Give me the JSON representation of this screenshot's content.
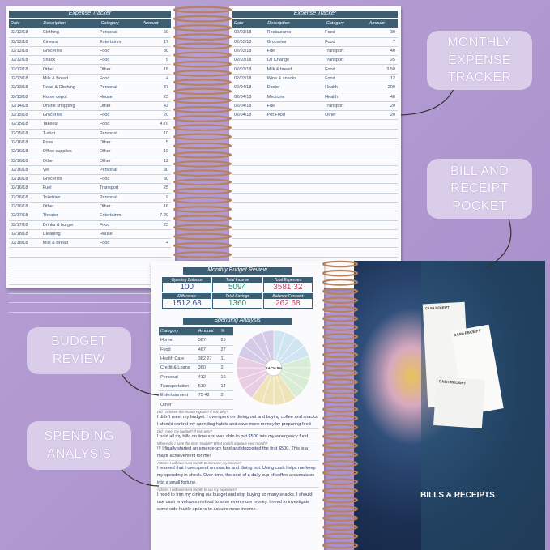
{
  "callouts": {
    "expense": "MONTHLY EXPENSE TRACKER",
    "pocket": "BILL AND RECEIPT POCKET",
    "budget": "BUDGET REVIEW",
    "spending": "SPENDING ANALYSIS"
  },
  "left_page": {
    "title": "Expense Tracker",
    "headers": [
      "Date",
      "Description",
      "Category",
      "Amount"
    ],
    "rows": [
      [
        "02/12/18",
        "Clothing",
        "Personal",
        "60"
      ],
      [
        "02/12/18",
        "Cinema",
        "Entertainm",
        "17"
      ],
      [
        "02/12/18",
        "Groceries",
        "Food",
        "30"
      ],
      [
        "02/12/18",
        "Snack",
        "Food",
        "5"
      ],
      [
        "02/12/18",
        "Other",
        "Other",
        "18"
      ],
      [
        "02/13/18",
        "Milk & Bread",
        "Food",
        "4"
      ],
      [
        "02/13/18",
        "Road & Clothing",
        "Personal",
        "37"
      ],
      [
        "02/13/18",
        "Home depot",
        "House",
        "25"
      ],
      [
        "02/14/18",
        "Online shopping",
        "Other",
        "43"
      ],
      [
        "02/15/18",
        "Groceries",
        "Food",
        "20"
      ],
      [
        "02/15/18",
        "Takeout",
        "Food",
        "4.70"
      ],
      [
        "02/15/18",
        "T-shirt",
        "Personal",
        "10"
      ],
      [
        "02/16/18",
        "Pose",
        "Other",
        "5"
      ],
      [
        "02/16/18",
        "Office supplies",
        "Other",
        "19"
      ],
      [
        "02/16/18",
        "Other",
        "Other",
        "12"
      ],
      [
        "02/16/18",
        "Vet",
        "Personal",
        "80"
      ],
      [
        "02/16/18",
        "Groceries",
        "Food",
        "30"
      ],
      [
        "02/16/18",
        "Fuel",
        "Transport",
        "25"
      ],
      [
        "02/16/18",
        "Toiletries",
        "Personal",
        "9"
      ],
      [
        "02/16/18",
        "Other",
        "Other",
        "16"
      ],
      [
        "02/17/18",
        "Theater",
        "Entertainm",
        "7.20"
      ],
      [
        "02/17/18",
        "Drinks & burger",
        "Food",
        "25"
      ],
      [
        "02/18/18",
        "Cleaning",
        "House",
        ""
      ],
      [
        "02/18/18",
        "Milk & Bread",
        "Food",
        "4"
      ]
    ]
  },
  "right_page": {
    "title": "Expense Tracker",
    "headers": [
      "Date",
      "Description",
      "Category",
      "Amount"
    ],
    "rows": [
      [
        "02/03/18",
        "Restaurants",
        "Food",
        "30"
      ],
      [
        "02/03/18",
        "Groceries",
        "Food",
        "7"
      ],
      [
        "02/03/18",
        "Fuel",
        "Transport",
        "40"
      ],
      [
        "02/03/18",
        "Oil Change",
        "Transport",
        "25"
      ],
      [
        "02/03/18",
        "Milk & bread",
        "Food",
        "3.50"
      ],
      [
        "02/03/18",
        "Wine & snacks",
        "Food",
        "12"
      ],
      [
        "02/04/18",
        "Doctor",
        "Health",
        "200"
      ],
      [
        "02/04/18",
        "Medicine",
        "Health",
        "48"
      ],
      [
        "02/04/18",
        "Fuel",
        "Transport",
        "20"
      ],
      [
        "02/04/18",
        "Pet Food",
        "Other",
        "20"
      ]
    ]
  },
  "budget": {
    "title": "Monthly Budget Review",
    "cells": [
      [
        "Opening Balance",
        "100"
      ],
      [
        "Total Income",
        "5094"
      ],
      [
        "Total Expenses",
        "3581 32"
      ],
      [
        "Difference",
        "1512 68"
      ],
      [
        "Total Savings",
        "1360"
      ],
      [
        "Balance Forward",
        "262 68"
      ]
    ]
  },
  "spending": {
    "title": "Spending Analysis",
    "headers": [
      "Category",
      "Amount",
      "%"
    ],
    "rows": [
      [
        "Home",
        "587",
        "25"
      ],
      [
        "Food",
        "467",
        "27"
      ],
      [
        "Health Care",
        "382 27",
        "11"
      ],
      [
        "Credit & Loans",
        "360",
        "2"
      ],
      [
        "Personal",
        "412",
        "16"
      ],
      [
        "Transportation",
        "510",
        "14"
      ],
      [
        "Entertainment",
        "75 48",
        "2"
      ],
      [
        "Other"
      ]
    ],
    "pie_label": "EACH 5%"
  },
  "reflection": [
    [
      "Did I achieve this month's goals? If not, why?",
      "I didn't meet my budget. I overspent on dining out and buying coffee and snacks. I should control my spending habits and save more money by preparing food"
    ],
    [
      "Did I meet my budget? If not, why?",
      "I paid all my bills on time and was able to put $500 into my emergency fund."
    ],
    [
      "Where did I have the most trouble? What could I improve next month?",
      "!!! I finally started an emergency fund and deposited the first $500. This is a major achievement for me!"
    ],
    [
      "Actions I will take next month to increase my income?",
      "I learned that I overspend on snacks and dining out. Using cash helps me keep my spending in check. Over time, the cost of a daily cup of coffee accumulates into a small fortune."
    ],
    [
      "Actions I will take next month to cut my expenses?",
      "I need to trim my dining out budget and stop buying so many snacks. I should use cash envelopes method to save even more money. I need to investigate some side hustle options to acquire more income."
    ]
  ],
  "pocket": {
    "receipts": [
      "CASH RECEIPT",
      "CASH RECEIPT",
      "CASH RECEIPT"
    ],
    "label": "BILLS & RECEIPTS"
  }
}
